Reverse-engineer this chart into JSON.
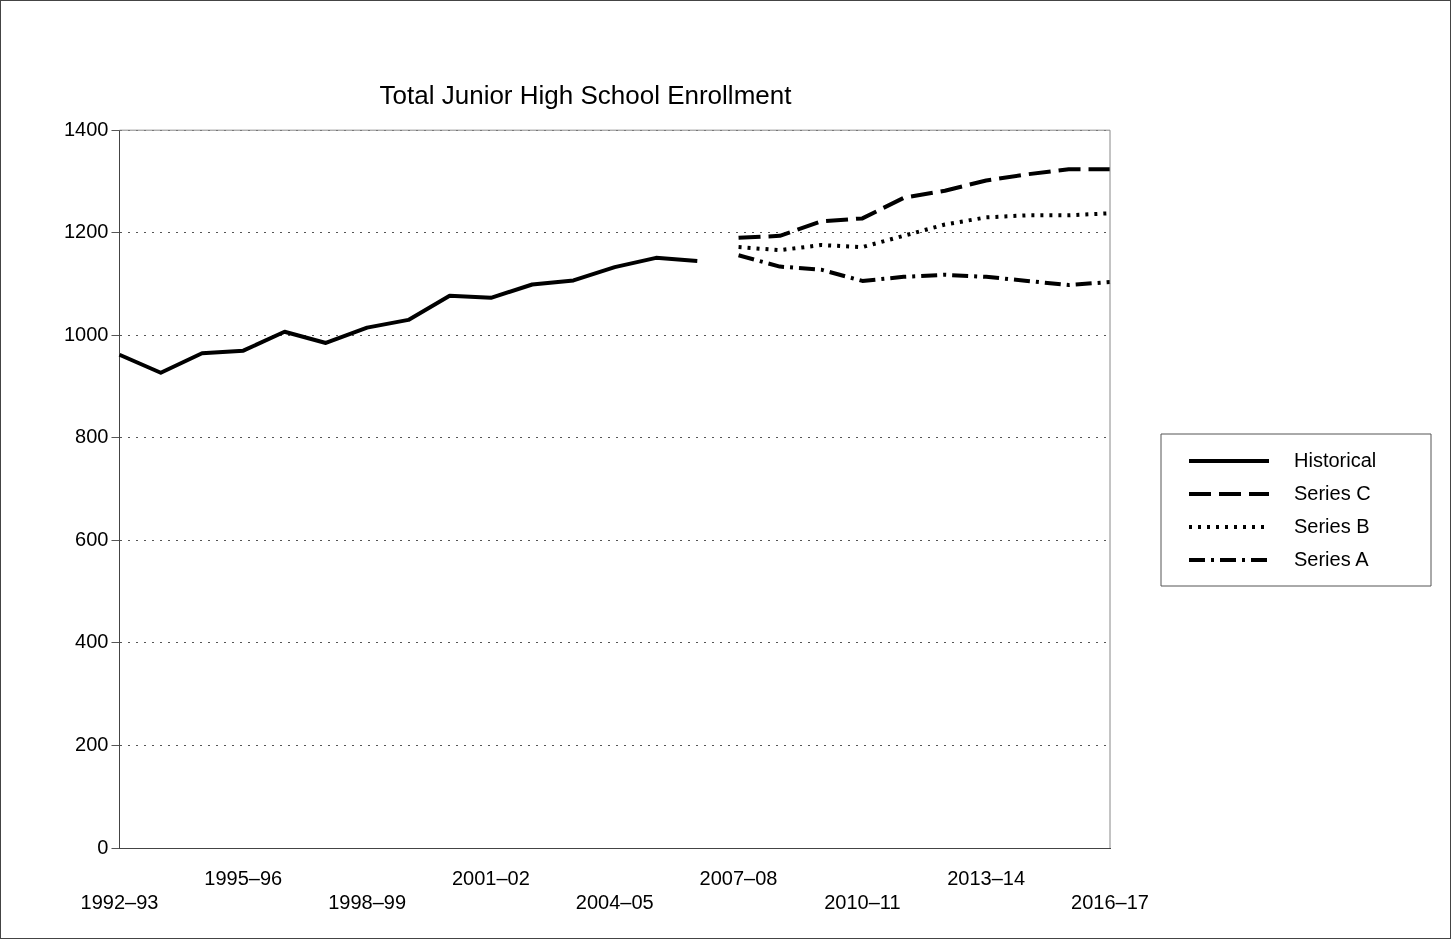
{
  "chart_data": {
    "type": "line",
    "title": "Total Junior High School Enrollment",
    "categories": [
      "1992–93",
      null,
      null,
      "1995–96",
      null,
      null,
      "1998–99",
      null,
      null,
      "2001–02",
      null,
      null,
      "2004–05",
      null,
      null,
      "2007–08",
      null,
      null,
      "2010–11",
      null,
      null,
      "2013–14",
      null,
      null,
      "2016–17"
    ],
    "series": [
      {
        "name": "Historical",
        "color": "#000000",
        "line_style": "solid",
        "values": [
          962,
          927,
          965,
          970,
          1007,
          985,
          1015,
          1030,
          1077,
          1073,
          1099,
          1107,
          1133,
          1151,
          1145,
          null,
          null,
          null,
          null,
          null,
          null,
          null,
          null,
          null,
          null
        ]
      },
      {
        "name": "Series C",
        "color": "#000000",
        "line_style": "dashed",
        "values": [
          null,
          null,
          null,
          null,
          null,
          null,
          null,
          null,
          null,
          null,
          null,
          null,
          null,
          null,
          null,
          1190,
          1194,
          1222,
          1228,
          1268,
          1282,
          1302,
          1314,
          1324,
          1324
        ]
      },
      {
        "name": "Series B",
        "color": "#000000",
        "line_style": "dotted",
        "values": [
          null,
          null,
          null,
          null,
          null,
          null,
          null,
          null,
          null,
          null,
          null,
          null,
          null,
          null,
          null,
          1172,
          1166,
          1176,
          1172,
          1194,
          1216,
          1230,
          1234,
          1234,
          1238
        ]
      },
      {
        "name": "Series A",
        "color": "#000000",
        "line_style": "dashdot",
        "values": [
          null,
          null,
          null,
          null,
          null,
          null,
          null,
          null,
          null,
          null,
          null,
          null,
          null,
          null,
          null,
          1156,
          1134,
          1128,
          1106,
          1114,
          1118,
          1114,
          1106,
          1098,
          1104
        ]
      }
    ],
    "ylim": [
      0,
      1400
    ],
    "yticks": [
      0,
      200,
      400,
      600,
      800,
      1000,
      1200,
      1400
    ],
    "grid": "y",
    "legend": "right",
    "marker": "none"
  }
}
